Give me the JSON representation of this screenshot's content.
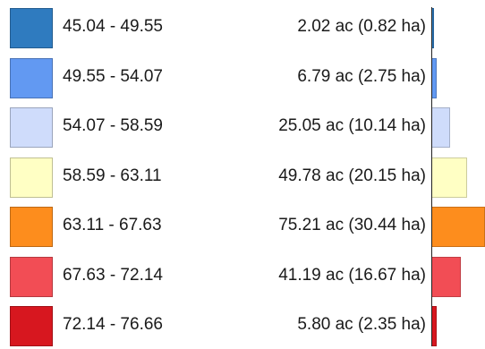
{
  "chart_data": {
    "type": "bar",
    "orientation": "horizontal",
    "max_acres": 75.21,
    "categories": [
      "45.04 - 49.55",
      "49.55 - 54.07",
      "54.07 - 58.59",
      "58.59 - 63.11",
      "63.11 - 67.63",
      "67.63 - 72.14",
      "72.14 - 76.66"
    ],
    "values": [
      2.02,
      6.79,
      25.05,
      49.78,
      75.21,
      41.19,
      5.8
    ],
    "labels": [
      "2.02 ac (0.82 ha)",
      "6.79 ac (2.75 ha)",
      "25.05 ac (10.14 ha)",
      "49.78 ac (20.15 ha)",
      "75.21 ac (30.44 ha)",
      "41.19 ac (16.67 ha)",
      "5.80 ac (2.35 ha)"
    ],
    "colors": [
      "#2f7bbf",
      "#6299f2",
      "#cfdcfb",
      "#ffffc4",
      "#fd8d1d",
      "#f24d55",
      "#d7171f"
    ]
  }
}
